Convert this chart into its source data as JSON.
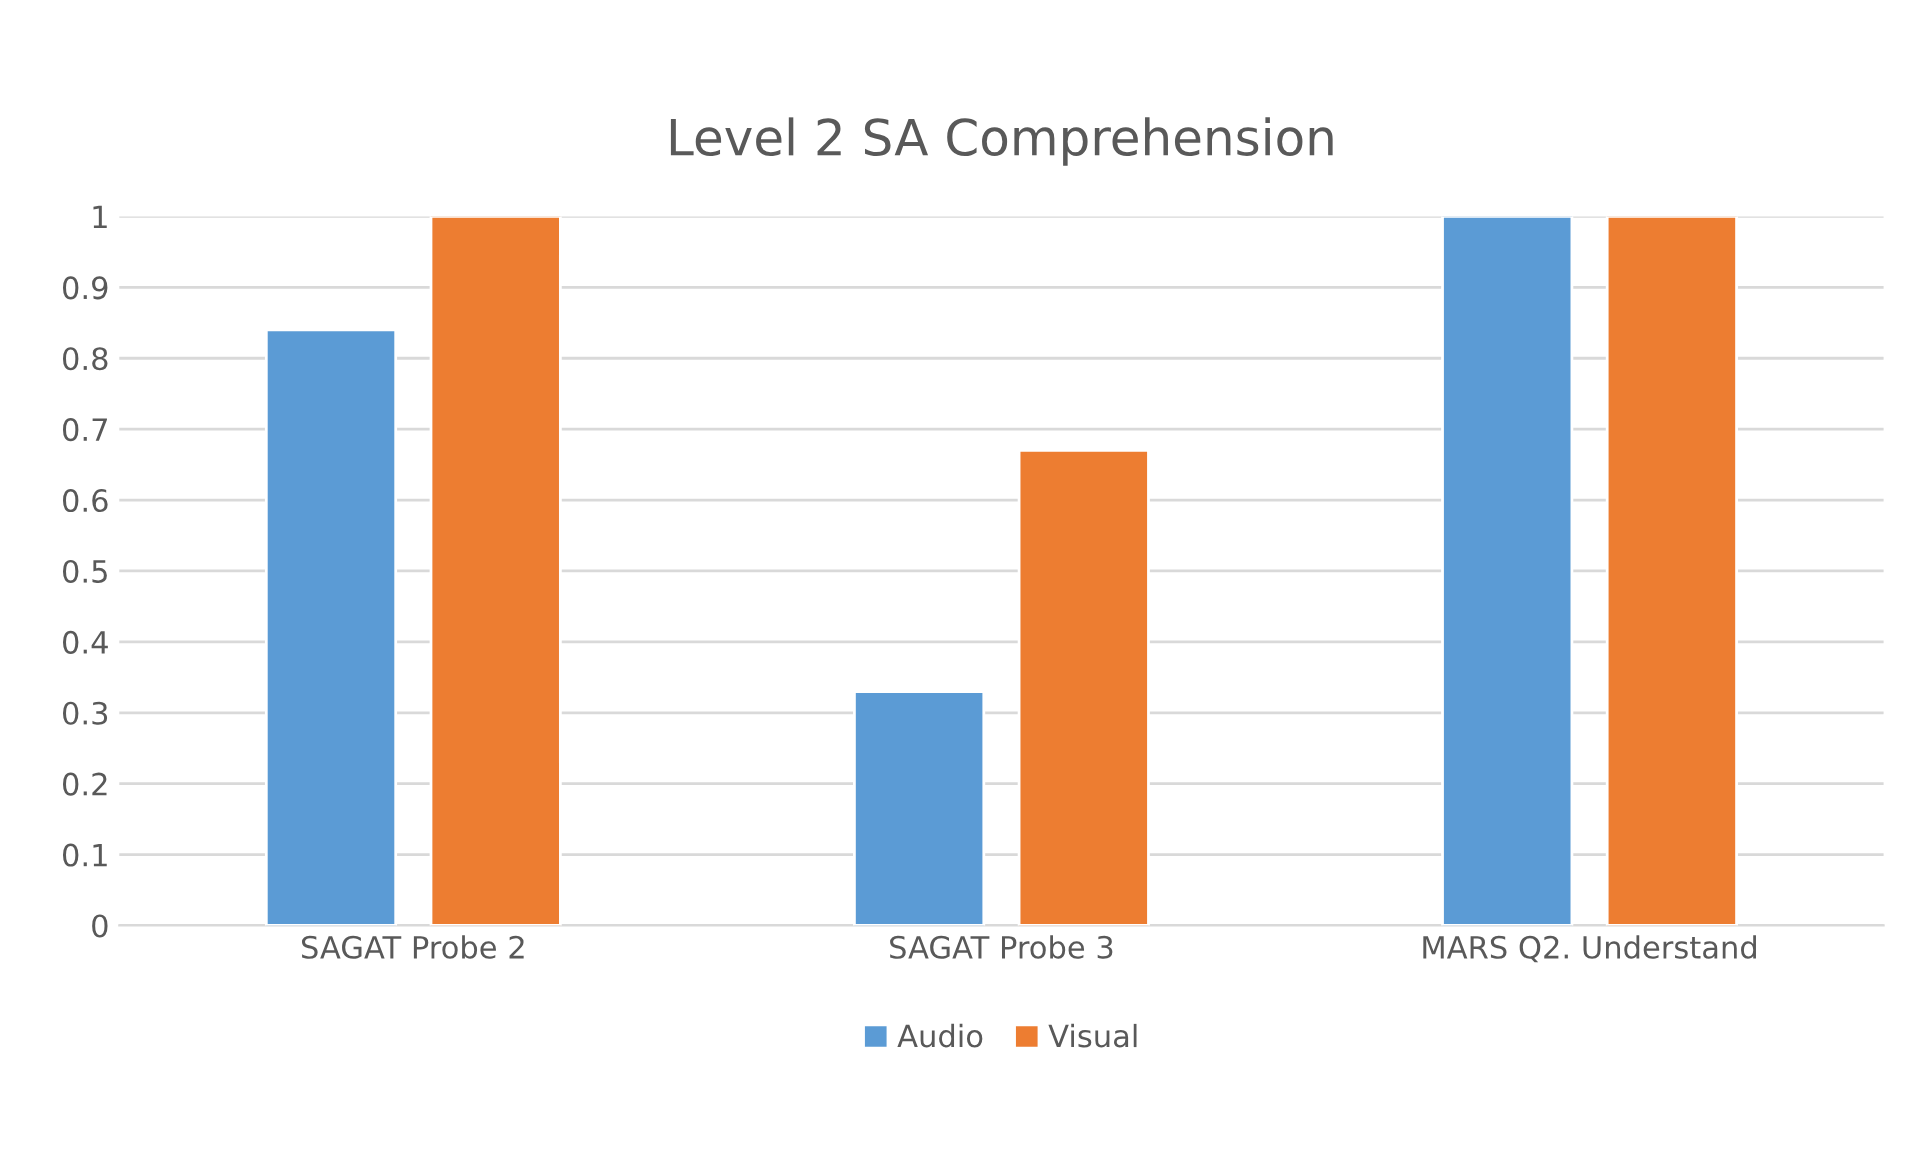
{
  "chart_data": {
    "type": "bar",
    "title": "Level 2 SA Comprehension",
    "categories": [
      "SAGAT Probe 2",
      "SAGAT Probe 3",
      "MARS Q2. Understand"
    ],
    "series": [
      {
        "name": "Audio",
        "color": "#5b9bd5",
        "values": [
          0.84,
          0.33,
          1
        ]
      },
      {
        "name": "Visual",
        "color": "#ed7d31",
        "values": [
          1,
          0.67,
          1
        ]
      }
    ],
    "ylim": [
      0,
      1
    ],
    "yticks": [
      0,
      {
        "value": 0.1,
        "label": "0.1"
      },
      {
        "value": 0.2,
        "label": "0.2"
      },
      {
        "value": 0.3,
        "label": "0.3"
      },
      {
        "value": 0.4,
        "label": "0.4"
      },
      {
        "value": 0.5,
        "label": "0.5"
      },
      {
        "value": 0.6,
        "label": "0.6"
      },
      {
        "value": 0.7,
        "label": "0.7"
      },
      {
        "value": 0.8,
        "label": "0.8"
      },
      {
        "value": 0.9,
        "label": "0.9"
      },
      1
    ],
    "grid": "y",
    "legend": "bottom"
  }
}
